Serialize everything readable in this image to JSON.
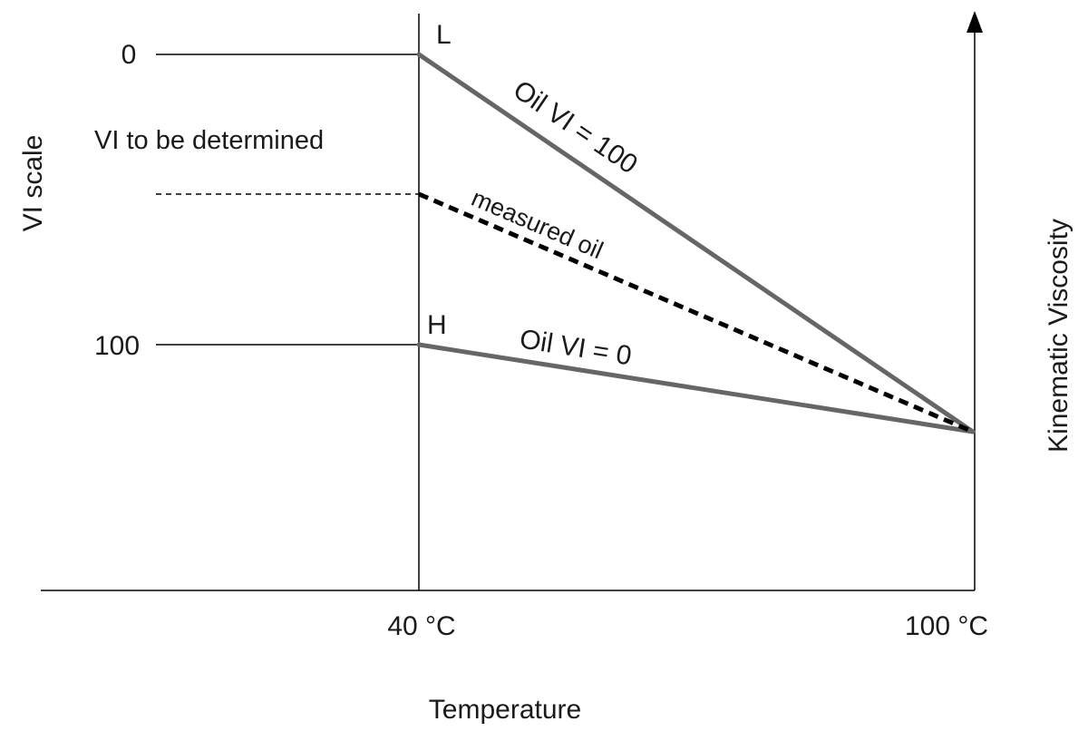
{
  "diagram": {
    "vi_scale_label": "VI scale",
    "vi_scale_ticks": [
      "0",
      "100"
    ],
    "vi_to_be_determined": "VI to be determined",
    "point_L": "L",
    "point_H": "H",
    "line_vi100_label": "Oil VI = 100",
    "line_measured_label": "measured oil",
    "line_vi0_label": "Oil VI = 0",
    "x_ticks": [
      "40 °C",
      "100 °C"
    ],
    "x_axis_label": "Temperature",
    "y_axis_right_label": "Kinematic Viscosity",
    "colors": {
      "reference_lines": "#666666",
      "measured_line": "#000000",
      "axes": "#000000"
    }
  }
}
